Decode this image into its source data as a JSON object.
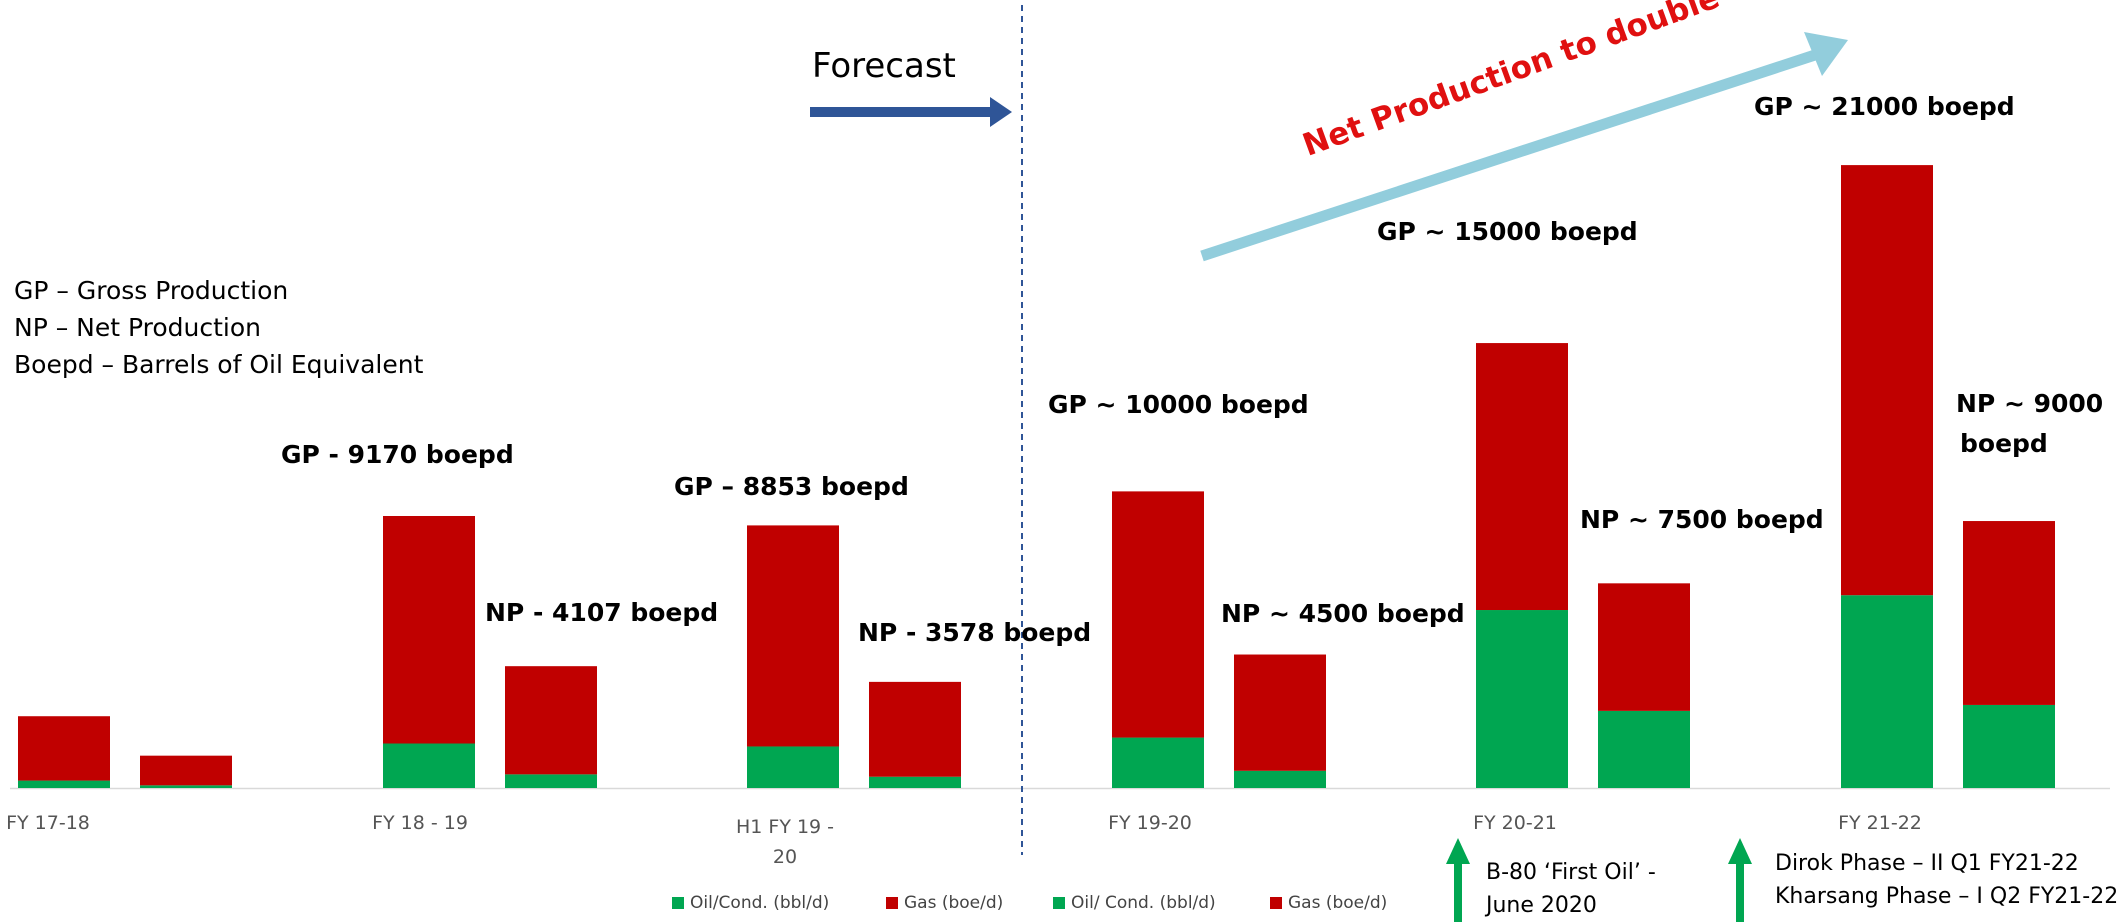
{
  "chart_data": {
    "type": "bar",
    "stacked": true,
    "categories": [
      "FY 17-18",
      "FY 18 - 19",
      "H1 FY 19 - 20",
      "FY 19-20",
      "FY 20-21",
      "FY 21-22"
    ],
    "series": [
      {
        "name": "Oil/Cond. (bbl/d)",
        "color": "#00a651",
        "values_gross": [
          250,
          1500,
          1400,
          1700,
          6000,
          6500
        ],
        "values_net": [
          90,
          460,
          380,
          580,
          2600,
          2800
        ]
      },
      {
        "name": "Gas (boe/d)",
        "color": "#c00000",
        "values_gross": [
          2170,
          7670,
          7453,
          8300,
          9000,
          14500
        ],
        "values_net": [
          1000,
          3647,
          3198,
          3920,
          4300,
          6200
        ]
      }
    ],
    "legend": [
      "Oil/Cond. (bbl/d)",
      "Gas (boe/d)",
      "Oil/ Cond. (bbl/d)",
      "Gas (boe/d)"
    ],
    "annotations": {
      "gp_18_19": "GP - 9170 boepd",
      "np_18_19": "NP - 4107 boepd",
      "gp_h1_19_20": "GP – 8853 boepd",
      "np_h1_19_20": "NP - 3578 boepd",
      "gp_19_20": "GP ~ 10000 boepd",
      "np_19_20": "NP ~ 4500 boepd",
      "gp_20_21": "GP ~ 15000 boepd",
      "np_20_21": "NP ~ 7500 boepd",
      "gp_21_22": "GP ~ 21000 boepd",
      "np_21_22_line1": "NP ~ 9000",
      "np_21_22_line2": "boepd"
    },
    "forecast_label": "Forecast",
    "net_production_label": "Net Production to double",
    "definitions": [
      "GP – Gross Production",
      "NP – Net Production",
      "Boepd – Barrels of Oil Equivalent"
    ],
    "milestones": {
      "m1_line1": "B-80 ‘First Oil’ -",
      "m1_line2": "June 2020",
      "m2_line1": "Dirok Phase – II  Q1 FY21-22",
      "m2_line2": "Kharsang Phase – I Q2 FY21-22"
    },
    "colors": {
      "oil": "#00a651",
      "gas": "#c00000",
      "forecast_line": "#2f5597",
      "forecast_arrow": "#2f5597",
      "growth_arrow": "#92cddc",
      "milestone_arrow": "#00a651"
    },
    "grid": false,
    "yaxis_visible": false
  }
}
